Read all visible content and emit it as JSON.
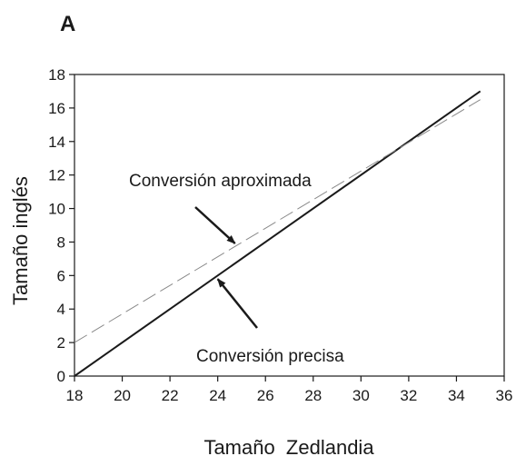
{
  "chart_data": {
    "type": "line",
    "panel_label": "A",
    "xlabel": "Tamaño  Zedlandia",
    "ylabel": "Tamaño inglés",
    "xlim": [
      18,
      36
    ],
    "ylim": [
      0,
      18
    ],
    "xticks": [
      18,
      20,
      22,
      24,
      26,
      28,
      30,
      32,
      34,
      36
    ],
    "yticks": [
      0,
      2,
      4,
      6,
      8,
      10,
      12,
      14,
      16,
      18
    ],
    "grid": false,
    "series": [
      {
        "style": "solid",
        "color": "#1a1a1a",
        "x": [
          18,
          35
        ],
        "y": [
          0,
          17
        ]
      },
      {
        "style": "dashed",
        "color": "#8a8a8a",
        "x": [
          18,
          35
        ],
        "y": [
          2,
          16.5
        ]
      }
    ],
    "annotations": [
      {
        "text": "Conversión aproximada",
        "points_to": {
          "x": 24.8,
          "y": 7.7
        }
      },
      {
        "text": "Conversión precisa",
        "points_to": {
          "x": 24,
          "y": 5.9
        }
      }
    ]
  }
}
